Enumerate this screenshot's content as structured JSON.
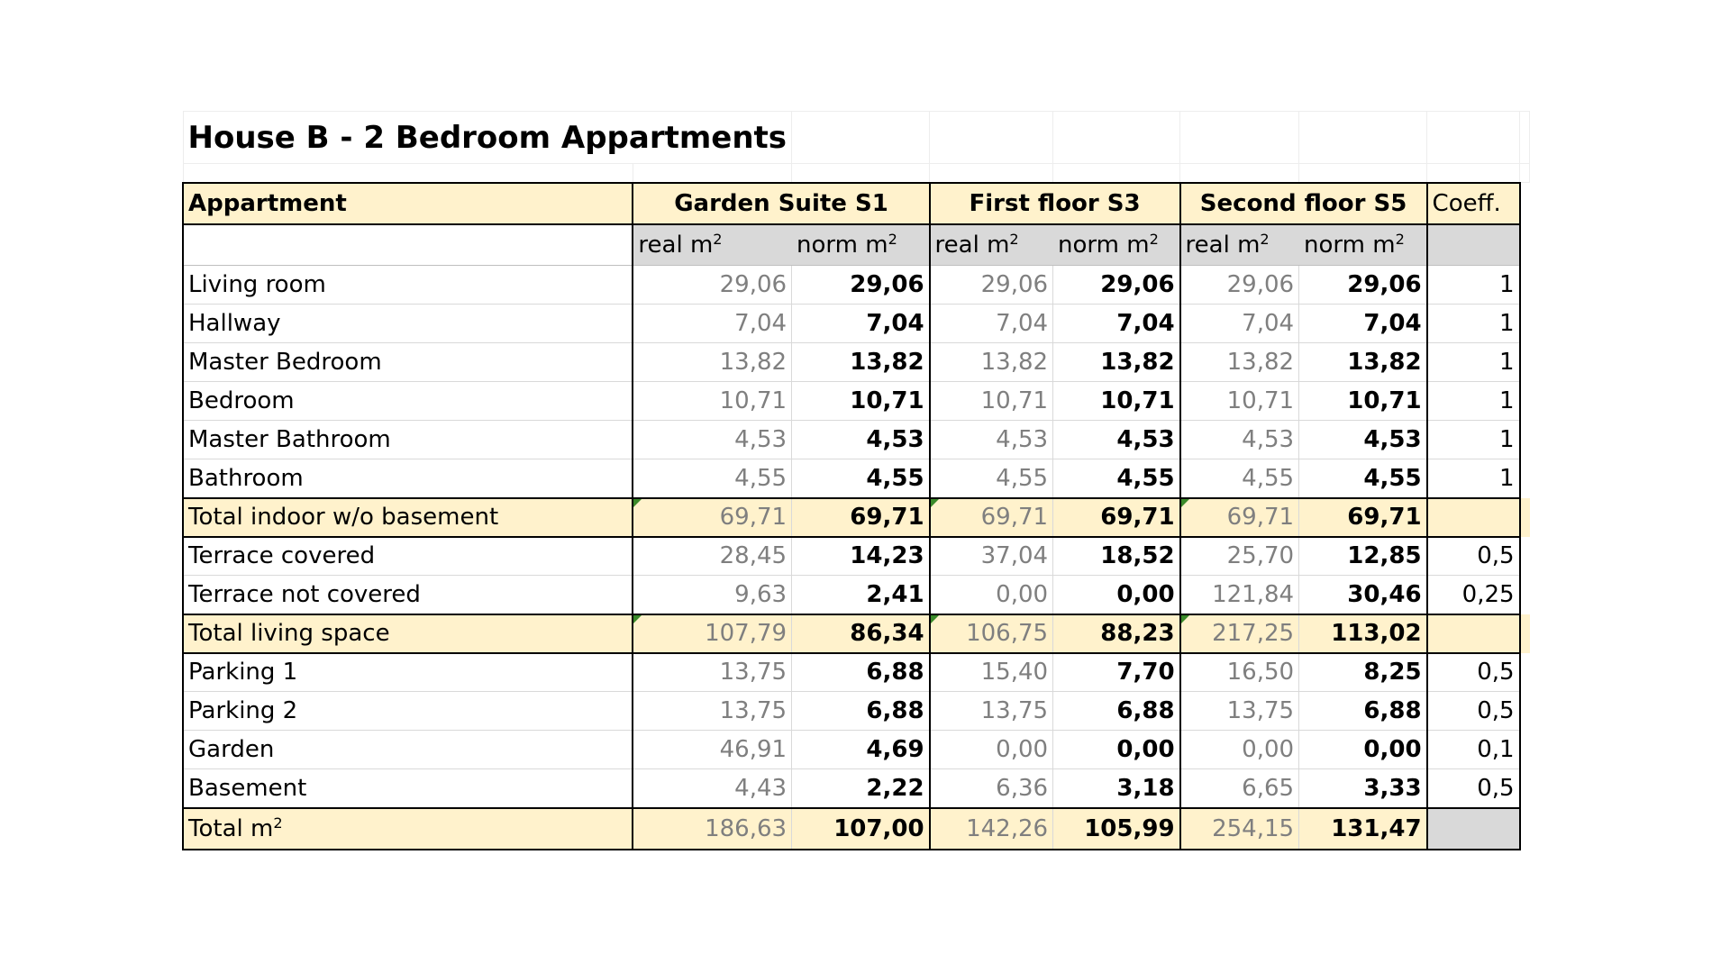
{
  "title": "House B - 2 Bedroom Appartments",
  "header": {
    "first_col": "Appartment",
    "groups": [
      "Garden Suite S1",
      "First floor S3",
      "Second floor S5"
    ],
    "coeff": "Coeff."
  },
  "subheader": {
    "real": "real m",
    "norm": "norm m",
    "sup": "2"
  },
  "rows": [
    {
      "label": "Living room",
      "v": [
        "29,06",
        "29,06",
        "29,06",
        "29,06",
        "29,06",
        "29,06"
      ],
      "coeff": "1"
    },
    {
      "label": "Hallway",
      "v": [
        "7,04",
        "7,04",
        "7,04",
        "7,04",
        "7,04",
        "7,04"
      ],
      "coeff": "1"
    },
    {
      "label": "Master Bedroom",
      "v": [
        "13,82",
        "13,82",
        "13,82",
        "13,82",
        "13,82",
        "13,82"
      ],
      "coeff": "1"
    },
    {
      "label": "Bedroom",
      "v": [
        "10,71",
        "10,71",
        "10,71",
        "10,71",
        "10,71",
        "10,71"
      ],
      "coeff": "1"
    },
    {
      "label": "Master Bathroom",
      "v": [
        "4,53",
        "4,53",
        "4,53",
        "4,53",
        "4,53",
        "4,53"
      ],
      "coeff": "1"
    },
    {
      "label": "Bathroom",
      "v": [
        "4,55",
        "4,55",
        "4,55",
        "4,55",
        "4,55",
        "4,55"
      ],
      "coeff": "1"
    },
    {
      "label": "Total indoor w/o basement",
      "v": [
        "69,71",
        "69,71",
        "69,71",
        "69,71",
        "69,71",
        "69,71"
      ],
      "coeff": "",
      "total": true
    },
    {
      "label": "Terrace covered",
      "v": [
        "28,45",
        "14,23",
        "37,04",
        "18,52",
        "25,70",
        "12,85"
      ],
      "coeff": "0,5"
    },
    {
      "label": "Terrace not covered",
      "v": [
        "9,63",
        "2,41",
        "0,00",
        "0,00",
        "121,84",
        "30,46"
      ],
      "coeff": "0,25"
    },
    {
      "label": "Total living space",
      "v": [
        "107,79",
        "86,34",
        "106,75",
        "88,23",
        "217,25",
        "113,02"
      ],
      "coeff": "",
      "total": true
    },
    {
      "label": "Parking 1",
      "v": [
        "13,75",
        "6,88",
        "15,40",
        "7,70",
        "16,50",
        "8,25"
      ],
      "coeff": "0,5"
    },
    {
      "label": "Parking 2",
      "v": [
        "13,75",
        "6,88",
        "13,75",
        "6,88",
        "13,75",
        "6,88"
      ],
      "coeff": "0,5"
    },
    {
      "label": "Garden",
      "v": [
        "46,91",
        "4,69",
        "0,00",
        "0,00",
        "0,00",
        "0,00"
      ],
      "coeff": "0,1"
    },
    {
      "label": "Basement",
      "v": [
        "4,43",
        "2,22",
        "6,36",
        "3,18",
        "6,65",
        "3,33"
      ],
      "coeff": "0,5"
    }
  ],
  "final": {
    "label": "Total m",
    "sup": "2",
    "v": [
      "186,63",
      "107,00",
      "142,26",
      "105,99",
      "254,15",
      "131,47"
    ]
  },
  "colors": {
    "header_fill": "#fff2cc",
    "subheader_fill": "#d9d9d9",
    "real_text": "#7f7f7f",
    "corner_marker": "#3a8a2a"
  }
}
